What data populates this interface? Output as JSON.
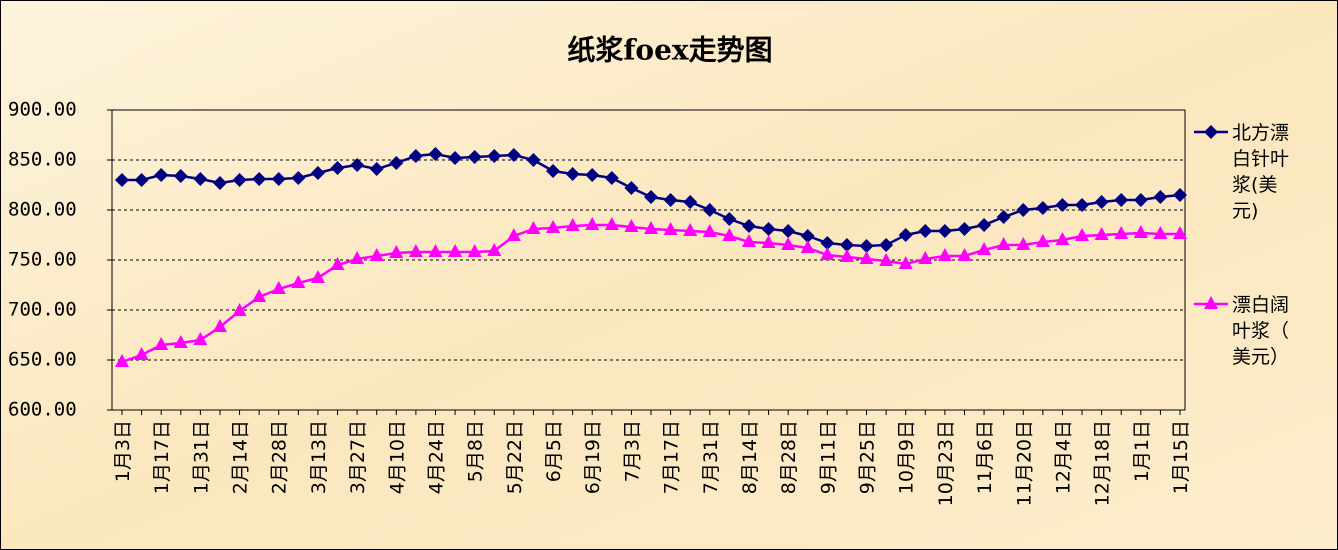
{
  "chart_data": {
    "type": "line",
    "title": "纸浆foex走势图",
    "categories": [
      "1月3日",
      null,
      "1月17日",
      null,
      "1月31日",
      null,
      "2月14日",
      null,
      "2月28日",
      null,
      "3月13日",
      null,
      "3月27日",
      null,
      "4月10日",
      null,
      "4月24日",
      null,
      "5月8日",
      null,
      "5月22日",
      null,
      "6月5日",
      null,
      "6月19日",
      null,
      "7月3日",
      null,
      "7月17日",
      null,
      "7月31日",
      null,
      "8月14日",
      null,
      "8月28日",
      null,
      "9月11日",
      null,
      "9月25日",
      null,
      "10月9日",
      null,
      "10月23日",
      null,
      "11月6日",
      null,
      "11月20日",
      null,
      "12月4日",
      null,
      "12月18日",
      null,
      "1月1日",
      null,
      "1月15日"
    ],
    "series": [
      {
        "name": "北方漂白针叶浆(美元)",
        "color": "#000080",
        "marker": "diamond",
        "values": [
          830,
          830,
          835,
          834,
          831,
          827,
          830,
          831,
          831,
          832,
          837,
          842,
          845,
          841,
          847,
          854,
          856,
          852,
          853,
          854,
          855,
          850,
          839,
          836,
          835,
          832,
          822,
          813,
          810,
          808,
          800,
          791,
          784,
          781,
          779,
          774,
          767,
          765,
          764,
          765,
          775,
          779,
          779,
          781,
          785,
          793,
          800,
          802,
          805,
          805,
          808,
          810,
          810,
          813,
          815
        ]
      },
      {
        "name": "漂白阔叶浆（美元）",
        "color": "#ff00ff",
        "marker": "triangle",
        "values": [
          648,
          655,
          665,
          667,
          670,
          683,
          699,
          713,
          721,
          727,
          732,
          745,
          751,
          754,
          757,
          758,
          758,
          758,
          758,
          759,
          774,
          781,
          782,
          784,
          785,
          785,
          783,
          781,
          780,
          779,
          778,
          774,
          768,
          767,
          765,
          762,
          755,
          753,
          751,
          749,
          746,
          751,
          754,
          754,
          760,
          765,
          765,
          768,
          770,
          774,
          775,
          776,
          777,
          776,
          776
        ]
      }
    ],
    "ylim": [
      600,
      900
    ],
    "yticks": [
      {
        "value": 600,
        "label": "600.00"
      },
      {
        "value": 650,
        "label": "650.00"
      },
      {
        "value": 700,
        "label": "700.00"
      },
      {
        "value": 750,
        "label": "750.00"
      },
      {
        "value": 800,
        "label": "800.00"
      },
      {
        "value": 850,
        "label": "850.00"
      },
      {
        "value": 900,
        "label": "900.00"
      }
    ],
    "grid": true,
    "legend": "right"
  }
}
